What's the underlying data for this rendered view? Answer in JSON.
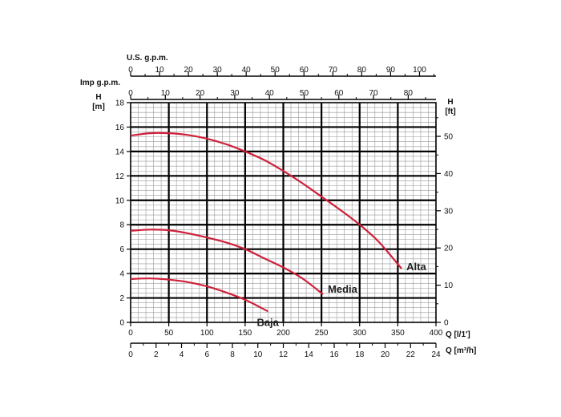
{
  "chart_data": {
    "type": "line",
    "xlabel": "Q [l/1']",
    "ylabel_left": "H [m]",
    "ylabel_right": "H [ft]",
    "grid": true,
    "colors": {
      "curve": "#d0203a",
      "grid_major": "#000000",
      "grid_minor": "#9a9a9a"
    },
    "x_main": {
      "label": "Q [l/1']",
      "range": [
        0,
        400
      ],
      "ticks": [
        0,
        50,
        100,
        150,
        200,
        250,
        300,
        350,
        400
      ]
    },
    "x_m3h": {
      "label": "Q [m³/h]",
      "range": [
        0,
        24
      ],
      "ticks": [
        0,
        2,
        4,
        6,
        8,
        10,
        12,
        14,
        16,
        18,
        20,
        22,
        24
      ]
    },
    "x_usgpm": {
      "label": "U.S. g.p.m.",
      "range": [
        0,
        105.7
      ],
      "ticks": [
        0,
        10,
        20,
        30,
        40,
        50,
        60,
        70,
        80,
        90,
        100
      ]
    },
    "x_impgpm": {
      "label": "Imp g.p.m.",
      "range": [
        0,
        88
      ],
      "ticks": [
        0,
        10,
        20,
        30,
        40,
        50,
        60,
        70,
        80
      ]
    },
    "y_m": {
      "label": "H [m]",
      "range": [
        0,
        18
      ],
      "ticks": [
        0,
        2,
        4,
        6,
        8,
        10,
        12,
        14,
        16,
        18
      ]
    },
    "y_ft": {
      "label": "H [ft]",
      "range": [
        0,
        59.06
      ],
      "ticks": [
        0,
        10,
        20,
        30,
        40,
        50
      ]
    },
    "series": [
      {
        "name": "Alta",
        "x": [
          0,
          25,
          50,
          75,
          100,
          125,
          150,
          175,
          200,
          225,
          250,
          275,
          300,
          325,
          355
        ],
        "y": [
          15.3,
          15.5,
          15.5,
          15.35,
          15.05,
          14.6,
          14.0,
          13.3,
          12.4,
          11.4,
          10.3,
          9.2,
          8.0,
          6.6,
          4.4
        ]
      },
      {
        "name": "Media",
        "x": [
          0,
          25,
          50,
          75,
          100,
          125,
          150,
          175,
          200,
          225,
          252
        ],
        "y": [
          7.5,
          7.6,
          7.55,
          7.3,
          6.95,
          6.55,
          6.0,
          5.25,
          4.5,
          3.6,
          2.3
        ]
      },
      {
        "name": "Baja",
        "x": [
          0,
          25,
          50,
          75,
          100,
          125,
          150,
          180
        ],
        "y": [
          3.55,
          3.6,
          3.5,
          3.3,
          2.95,
          2.45,
          1.85,
          0.9
        ]
      }
    ]
  }
}
